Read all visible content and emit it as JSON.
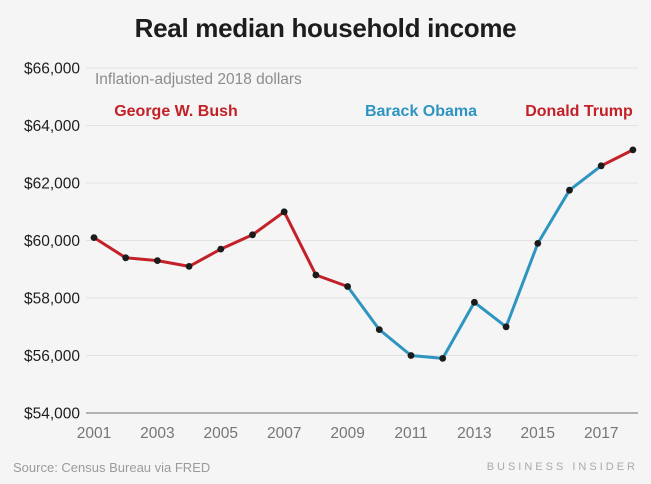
{
  "chart_data": {
    "type": "line",
    "title": "Real median household income",
    "subtitle": "Inflation-adjusted 2018 dollars",
    "x": [
      2001,
      2002,
      2003,
      2004,
      2005,
      2006,
      2007,
      2008,
      2009,
      2010,
      2011,
      2012,
      2013,
      2014,
      2015,
      2016,
      2017,
      2018
    ],
    "values": [
      60100,
      59400,
      59300,
      59100,
      59700,
      60200,
      61000,
      58800,
      58400,
      56900,
      56000,
      55900,
      57850,
      57000,
      59900,
      61750,
      62600,
      63150
    ],
    "segments": [
      {
        "name": "George W. Bush",
        "color": "#c32127",
        "from": 2001,
        "to": 2009
      },
      {
        "name": "Barack Obama",
        "color": "#2e95c1",
        "from": 2009,
        "to": 2017
      },
      {
        "name": "Donald Trump",
        "color": "#c32127",
        "from": 2017,
        "to": 2018
      }
    ],
    "ylim": [
      54000,
      66000
    ],
    "yticks": [
      66000,
      64000,
      62000,
      60000,
      58000,
      56000,
      54000
    ],
    "ytick_labels": [
      "$66,000",
      "$64,000",
      "$62,000",
      "$60,000",
      "$58,000",
      "$56,000",
      "$54,000"
    ],
    "xticks": [
      2001,
      2003,
      2005,
      2007,
      2009,
      2011,
      2013,
      2015,
      2017
    ],
    "grid": true,
    "legend_position": "inline-annotations-top",
    "marker_color": "#1b1b1b",
    "colors": {
      "grid": "#e3e3e3",
      "axis": "#9c9c9c",
      "background": "#f5f5f5"
    }
  },
  "footer": {
    "source": "Source: Census Bureau via FRED",
    "brand": "BUSINESS INSIDER"
  }
}
